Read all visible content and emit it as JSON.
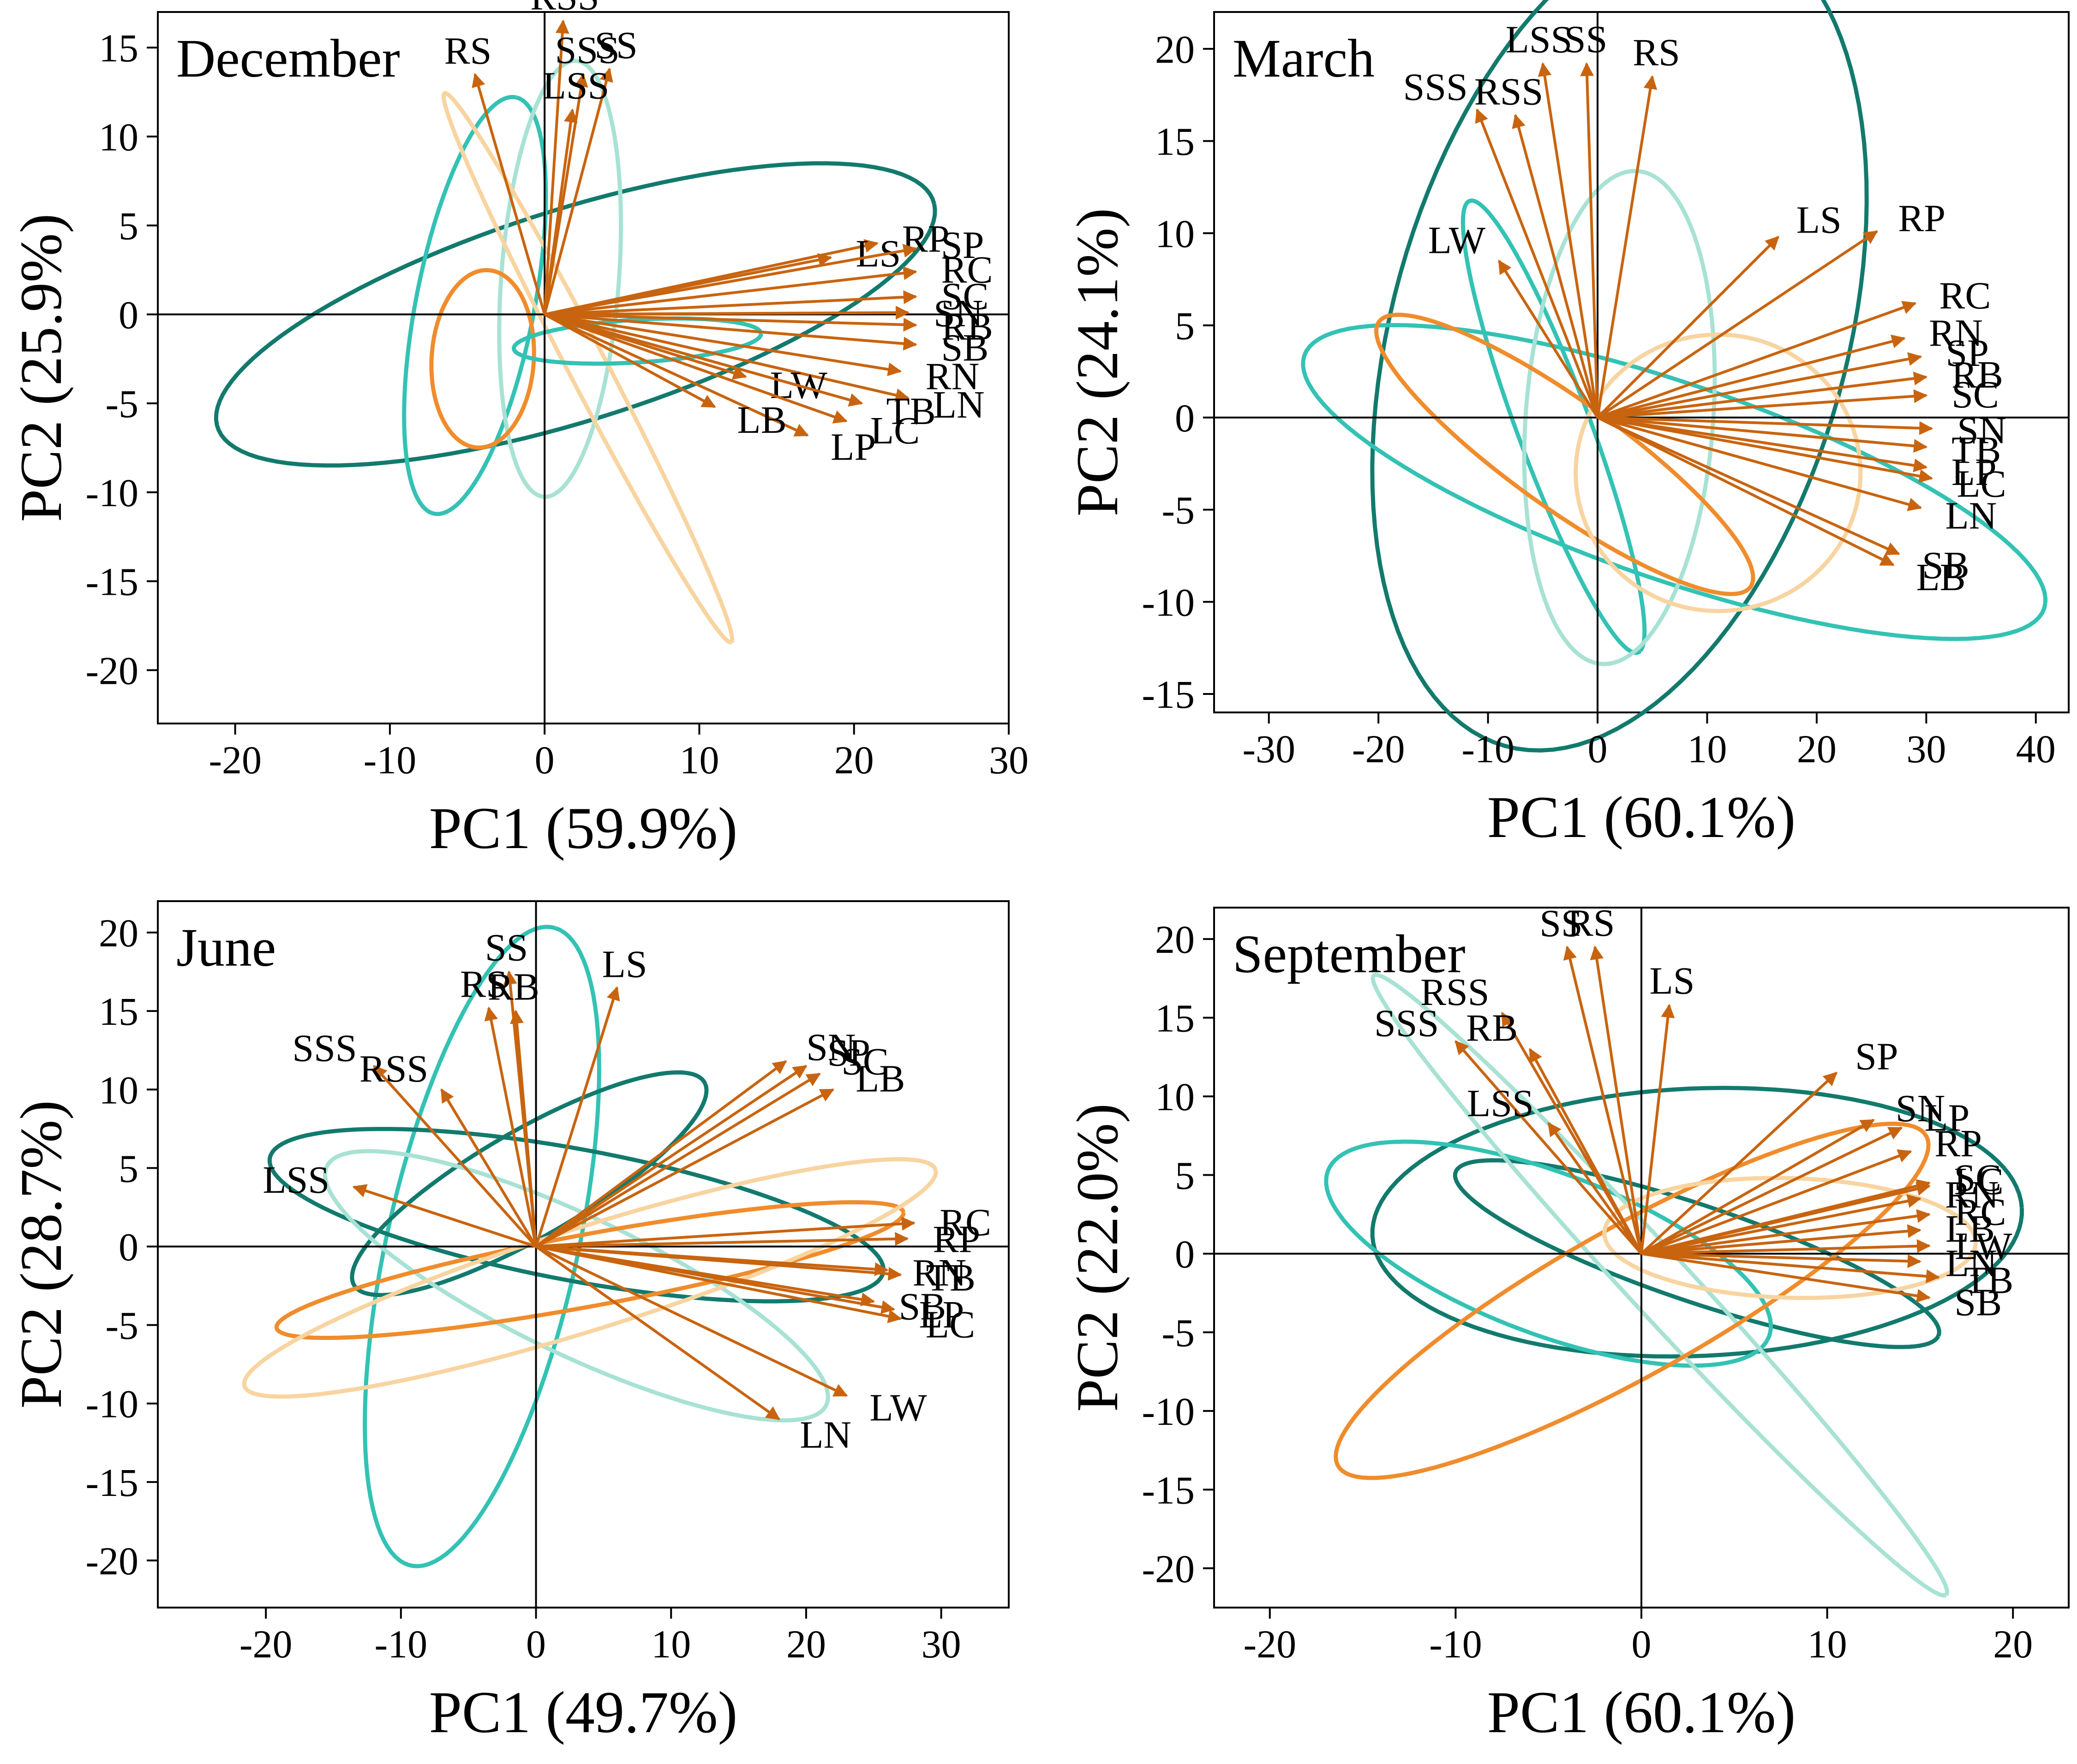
{
  "colors": {
    "arrow": "#c8640f",
    "dark_teal": "#127a6d",
    "teal": "#33c2b4",
    "light_teal": "#a8e2d4",
    "orange": "#f08c2c",
    "light_orange": "#f8d4a0"
  },
  "chart_data": [
    {
      "type": "biplot",
      "title": "December",
      "xlabel": "PC1 (59.9%)",
      "ylabel": "PC2 (25.9%)",
      "xlim": [
        -25,
        30
      ],
      "ylim": [
        -23,
        17
      ],
      "xticks": [
        -20,
        -10,
        0,
        10,
        20,
        30
      ],
      "yticks": [
        -20,
        -15,
        -10,
        -5,
        0,
        5,
        10,
        15
      ],
      "loadings": [
        {
          "name": "RS",
          "x": -4.5,
          "y": 13.5
        },
        {
          "name": "RSS",
          "x": 1.2,
          "y": 16.5
        },
        {
          "name": "SS",
          "x": 4.2,
          "y": 13.8
        },
        {
          "name": "SSS",
          "x": 2.5,
          "y": 13.5
        },
        {
          "name": "LSS",
          "x": 1.8,
          "y": 11.5
        },
        {
          "name": "RP",
          "x": 21.5,
          "y": 4.0
        },
        {
          "name": "LS",
          "x": 18.5,
          "y": 3.2
        },
        {
          "name": "SP",
          "x": 24.0,
          "y": 3.7
        },
        {
          "name": "RC",
          "x": 24.0,
          "y": 2.4
        },
        {
          "name": "SC",
          "x": 24.0,
          "y": 1.0
        },
        {
          "name": "RB",
          "x": 24.0,
          "y": -0.6
        },
        {
          "name": "SB",
          "x": 24.0,
          "y": -1.7
        },
        {
          "name": "SN",
          "x": 23.5,
          "y": 0.1
        },
        {
          "name": "RN",
          "x": 23.0,
          "y": -3.2
        },
        {
          "name": "LN",
          "x": 23.5,
          "y": -4.7
        },
        {
          "name": "LW",
          "x": 13.0,
          "y": -3.5
        },
        {
          "name": "TB",
          "x": 20.5,
          "y": -5.0
        },
        {
          "name": "LP",
          "x": 17.0,
          "y": -6.8
        },
        {
          "name": "LB",
          "x": 11.0,
          "y": -5.2
        },
        {
          "name": "LC",
          "x": 19.5,
          "y": -6.0
        }
      ],
      "ellipses": [
        {
          "color": "dark_teal",
          "cx": 2,
          "cy": 0,
          "a": 24,
          "b": 6,
          "angle": 15
        },
        {
          "color": "teal",
          "cx": -4.5,
          "cy": 0.5,
          "a": 12,
          "b": 3.8,
          "angle": 77
        },
        {
          "color": "light_teal",
          "cx": 1,
          "cy": 2,
          "a": 12.3,
          "b": 3.8,
          "angle": 85
        },
        {
          "color": "orange",
          "cx": -4,
          "cy": -2.5,
          "a": 5,
          "b": 3.3,
          "angle": 85
        },
        {
          "color": "light_orange",
          "cx": 2.8,
          "cy": -3,
          "a": 18,
          "b": 1.2,
          "angle": -59
        },
        {
          "color": "teal",
          "cx": 6,
          "cy": -1.5,
          "a": 8,
          "b": 1.2,
          "angle": 3
        }
      ]
    },
    {
      "type": "biplot",
      "title": "March",
      "xlabel": "PC1 (60.1%)",
      "ylabel": "PC2 (24.1%)",
      "xlim": [
        -35,
        43
      ],
      "ylim": [
        -16,
        22
      ],
      "xticks": [
        -30,
        -20,
        -10,
        0,
        10,
        20,
        30,
        40
      ],
      "yticks": [
        -15,
        -10,
        -5,
        0,
        5,
        10,
        15,
        20
      ],
      "loadings": [
        {
          "name": "LSS",
          "x": -5.0,
          "y": 19.2
        },
        {
          "name": "SS",
          "x": -1.0,
          "y": 19.2
        },
        {
          "name": "RS",
          "x": 5.0,
          "y": 18.5
        },
        {
          "name": "SSS",
          "x": -11.0,
          "y": 16.7
        },
        {
          "name": "RSS",
          "x": -7.5,
          "y": 16.4
        },
        {
          "name": "LS",
          "x": 16.5,
          "y": 9.8
        },
        {
          "name": "RP",
          "x": 25.5,
          "y": 10.1
        },
        {
          "name": "LW",
          "x": -9.0,
          "y": 8.5
        },
        {
          "name": "RC",
          "x": 29.0,
          "y": 6.2
        },
        {
          "name": "RN",
          "x": 28.0,
          "y": 4.3
        },
        {
          "name": "SP",
          "x": 29.5,
          "y": 3.3
        },
        {
          "name": "RB",
          "x": 30.0,
          "y": 2.2
        },
        {
          "name": "SC",
          "x": 30.0,
          "y": 1.2
        },
        {
          "name": "SN",
          "x": 30.5,
          "y": -0.6
        },
        {
          "name": "TB",
          "x": 30.0,
          "y": -1.6
        },
        {
          "name": "LP",
          "x": 30.0,
          "y": -2.7
        },
        {
          "name": "LC",
          "x": 30.5,
          "y": -3.3
        },
        {
          "name": "LN",
          "x": 29.5,
          "y": -4.9
        },
        {
          "name": "SB",
          "x": 27.5,
          "y": -7.4
        },
        {
          "name": "LB",
          "x": 27.0,
          "y": -8.0
        }
      ],
      "ellipses": [
        {
          "color": "dark_teal",
          "cx": 2,
          "cy": 4.5,
          "a": 26,
          "b": 18.5,
          "angle": 45
        },
        {
          "color": "teal",
          "cx": 7,
          "cy": -3.5,
          "a": 34.5,
          "b": 5.5,
          "angle": -11
        },
        {
          "color": "teal",
          "cx": -4,
          "cy": -0.5,
          "a": 14.5,
          "b": 3,
          "angle": -57
        },
        {
          "color": "light_teal",
          "cx": 2,
          "cy": 0,
          "a": 13.5,
          "b": 8.5,
          "angle": 80
        },
        {
          "color": "orange",
          "cx": -3,
          "cy": -2,
          "a": 18.5,
          "b": 3.3,
          "angle": -22
        },
        {
          "color": "light_orange",
          "cx": 11,
          "cy": -3,
          "a": 13,
          "b": 7.5,
          "angle": 0
        }
      ]
    },
    {
      "type": "biplot",
      "title": "June",
      "xlabel": "PC1 (49.7%)",
      "ylabel": "PC2 (28.7%)",
      "xlim": [
        -28,
        35
      ],
      "ylim": [
        -23,
        22
      ],
      "xticks": [
        -20,
        -10,
        0,
        10,
        20,
        30
      ],
      "yticks": [
        -20,
        -15,
        -10,
        -5,
        0,
        5,
        10,
        15,
        20
      ],
      "loadings": [
        {
          "name": "SS",
          "x": -2.0,
          "y": 17.5
        },
        {
          "name": "RS",
          "x": -3.5,
          "y": 15.2
        },
        {
          "name": "RB",
          "x": -1.5,
          "y": 15.0
        },
        {
          "name": "LS",
          "x": 6.0,
          "y": 16.5
        },
        {
          "name": "SSS",
          "x": -12.0,
          "y": 11.5
        },
        {
          "name": "RSS",
          "x": -7.0,
          "y": 10.0
        },
        {
          "name": "SN",
          "x": 18.5,
          "y": 11.8
        },
        {
          "name": "SP",
          "x": 20.0,
          "y": 11.5
        },
        {
          "name": "SC",
          "x": 21.0,
          "y": 11.0
        },
        {
          "name": "LB",
          "x": 22.0,
          "y": 10.0
        },
        {
          "name": "LSS",
          "x": -13.5,
          "y": 3.8
        },
        {
          "name": "RC",
          "x": 28.0,
          "y": 1.5
        },
        {
          "name": "RP",
          "x": 27.5,
          "y": 0.5
        },
        {
          "name": "RN",
          "x": 26.0,
          "y": -1.5
        },
        {
          "name": "TB",
          "x": 27.0,
          "y": -1.8
        },
        {
          "name": "SB",
          "x": 25.0,
          "y": -3.5
        },
        {
          "name": "LP",
          "x": 26.5,
          "y": -4.0
        },
        {
          "name": "LC",
          "x": 27.0,
          "y": -4.6
        },
        {
          "name": "LN",
          "x": 18.0,
          "y": -11.0
        },
        {
          "name": "LW",
          "x": 23.0,
          "y": -9.5
        }
      ],
      "ellipses": [
        {
          "color": "teal",
          "cx": -4,
          "cy": 0,
          "a": 21,
          "b": 7,
          "angle": 75
        },
        {
          "color": "dark_teal",
          "cx": -0.5,
          "cy": 4,
          "a": 14.5,
          "b": 3.5,
          "angle": 26
        },
        {
          "color": "dark_teal",
          "cx": 3,
          "cy": 2,
          "a": 23,
          "b": 4.2,
          "angle": -9
        },
        {
          "color": "light_teal",
          "cx": 3,
          "cy": -2.5,
          "a": 20,
          "b": 4.5,
          "angle": -22
        },
        {
          "color": "orange",
          "cx": 4,
          "cy": -1.5,
          "a": 23.5,
          "b": 2.3,
          "angle": 9
        },
        {
          "color": "light_orange",
          "cx": 4,
          "cy": -2,
          "a": 26.5,
          "b": 3.3,
          "angle": 15
        }
      ]
    },
    {
      "type": "biplot",
      "title": "September",
      "xlabel": "PC1 (60.1%)",
      "ylabel": "PC2 (22.0%)",
      "xlim": [
        -23,
        23
      ],
      "ylim": [
        -22.5,
        22
      ],
      "xticks": [
        -20,
        -10,
        0,
        10,
        20
      ],
      "yticks": [
        -20,
        -15,
        -10,
        -5,
        0,
        5,
        10,
        15,
        20
      ],
      "loadings": [
        {
          "name": "SS",
          "x": -4.0,
          "y": 19.5
        },
        {
          "name": "RS",
          "x": -2.5,
          "y": 19.5
        },
        {
          "name": "LS",
          "x": 1.5,
          "y": 15.8
        },
        {
          "name": "RSS",
          "x": -7.5,
          "y": 15.3
        },
        {
          "name": "RB",
          "x": -6.0,
          "y": 13.0
        },
        {
          "name": "SSS",
          "x": -10.0,
          "y": 13.5
        },
        {
          "name": "LSS",
          "x": -5.0,
          "y": 8.3
        },
        {
          "name": "SP",
          "x": 10.5,
          "y": 11.5
        },
        {
          "name": "SN",
          "x": 12.5,
          "y": 8.5
        },
        {
          "name": "LP",
          "x": 14.0,
          "y": 8.0
        },
        {
          "name": "RP",
          "x": 14.5,
          "y": 6.5
        },
        {
          "name": "SC",
          "x": 15.5,
          "y": 4.5
        },
        {
          "name": "RN",
          "x": 15.0,
          "y": 3.5
        },
        {
          "name": "LC",
          "x": 15.5,
          "y": 4.3
        },
        {
          "name": "RC",
          "x": 15.5,
          "y": 2.5
        },
        {
          "name": "LB",
          "x": 15.0,
          "y": 1.5
        },
        {
          "name": "LW",
          "x": 15.5,
          "y": 0.5
        },
        {
          "name": "LN",
          "x": 15.0,
          "y": -0.5
        },
        {
          "name": "TB",
          "x": 16.0,
          "y": -1.5
        },
        {
          "name": "SB",
          "x": 15.5,
          "y": -2.8
        }
      ],
      "ellipses": [
        {
          "color": "dark_teal",
          "cx": 3,
          "cy": 2,
          "a": 17.5,
          "b": 8.5,
          "angle": 3
        },
        {
          "color": "dark_teal",
          "cx": 3,
          "cy": 0,
          "a": 14,
          "b": 3,
          "angle": -22
        },
        {
          "color": "teal",
          "cx": -5,
          "cy": 0,
          "a": 13,
          "b": 5,
          "angle": -25
        },
        {
          "color": "light_teal",
          "cx": 1,
          "cy": -2,
          "a": 25,
          "b": 1.8,
          "angle": -52
        },
        {
          "color": "orange",
          "cx": -0.5,
          "cy": -3,
          "a": 19,
          "b": 4.5,
          "angle": 34
        },
        {
          "color": "light_orange",
          "cx": 8,
          "cy": 1,
          "a": 10,
          "b": 3.8,
          "angle": -2
        }
      ]
    }
  ]
}
